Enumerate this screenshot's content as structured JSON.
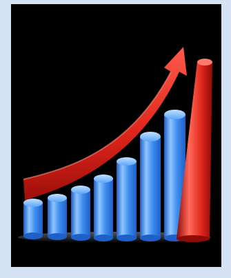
{
  "image": {
    "subject": "3d-growth-bar-chart-with-rising-arrow",
    "colors": {
      "frame": "#d5e2f3",
      "background": "#000000",
      "bars_light": "#8fc5ff",
      "bars_mid": "#3f8ff0",
      "bars_dark": "#1e5fc8",
      "arrow_light": "#ff5a4a",
      "arrow_mid": "#e0261c",
      "arrow_dark": "#9e0f0a",
      "column_light": "#ff6a5a",
      "column_mid": "#e0261c",
      "column_dark": "#8e0b08"
    },
    "icons": [
      "blue-bar-icon",
      "red-arrow-icon",
      "red-column-icon"
    ]
  }
}
